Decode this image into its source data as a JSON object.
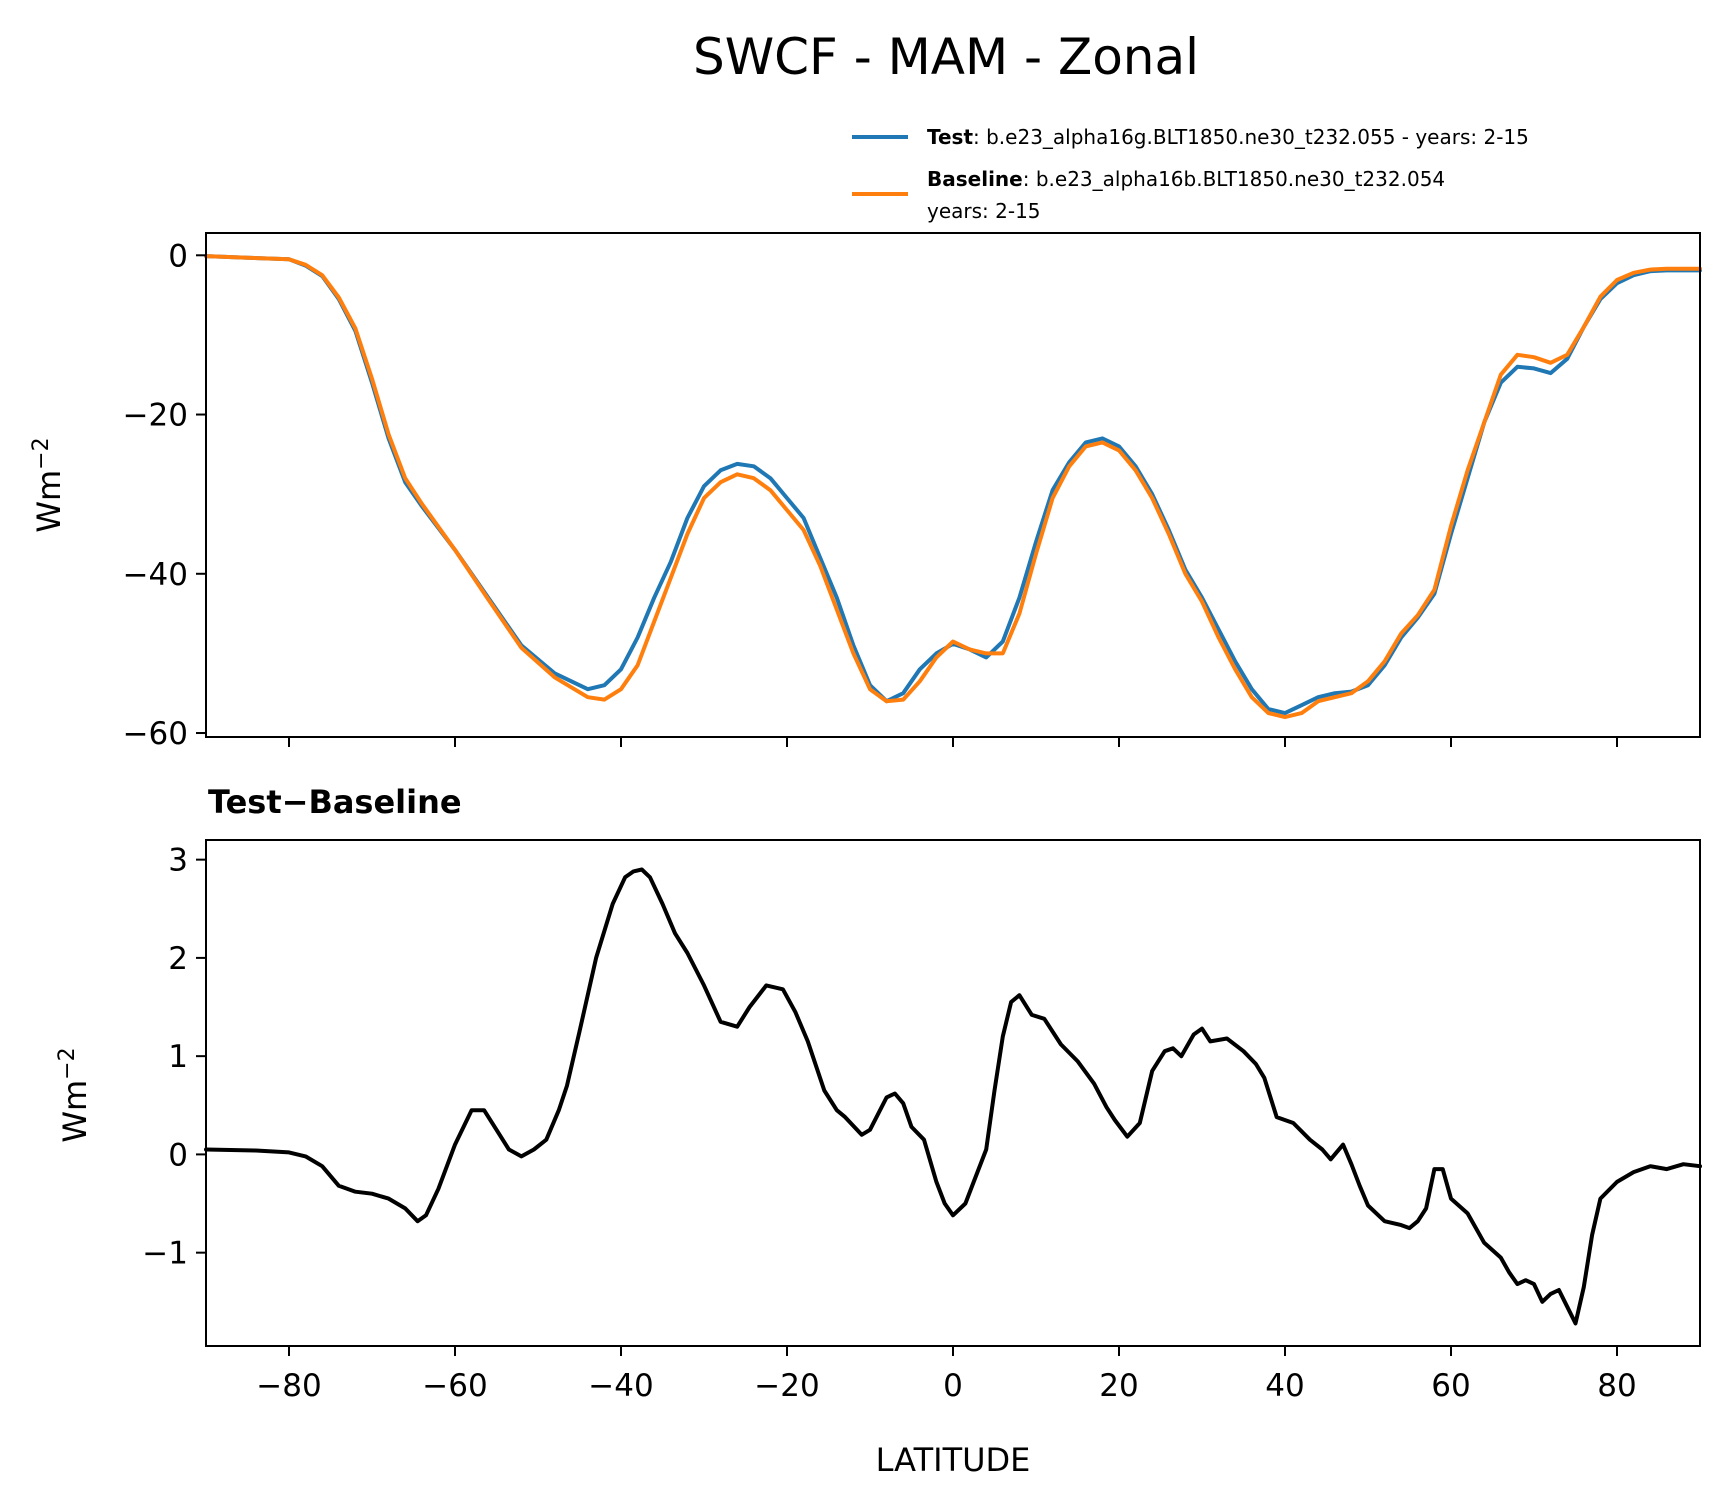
{
  "title": "SWCF - MAM - Zonal",
  "colors": {
    "test": "#1f77b4",
    "baseline": "#ff7f0e",
    "diff": "#000000"
  },
  "legend": {
    "test_name": "Test",
    "test_text": ": b.e23_alpha16g.BLT1850.ne30_t232.055 - years: 2-15",
    "baseline_name": "Baseline",
    "baseline_text": ": b.e23_alpha16b.BLT1850.ne30_t232.054",
    "baseline_text2": "years: 2-15"
  },
  "chart_data": [
    {
      "type": "line",
      "panel": "top",
      "title": "SWCF - MAM - Zonal",
      "xlabel": "",
      "ylabel": "Wm⁻²",
      "xlim": [
        -90,
        90
      ],
      "ylim": [
        -60.5,
        2.8
      ],
      "yticks": [
        0,
        -20,
        -40,
        -60
      ],
      "ytick_labels": [
        "0",
        "−20",
        "−40",
        "−60"
      ],
      "xticks": [
        -80,
        -60,
        -40,
        -20,
        0,
        20,
        40,
        60,
        80
      ],
      "x": [
        -90,
        -85,
        -80,
        -78,
        -76,
        -74,
        -72,
        -70,
        -68,
        -66,
        -64,
        -60,
        -56,
        -52,
        -48,
        -44,
        -42,
        -40,
        -38,
        -36,
        -34,
        -32,
        -30,
        -28,
        -26,
        -24,
        -22,
        -20,
        -18,
        -16,
        -14,
        -12,
        -10,
        -8,
        -6,
        -4,
        -2,
        0,
        2,
        4,
        6,
        8,
        10,
        12,
        14,
        16,
        18,
        20,
        22,
        24,
        26,
        28,
        30,
        32,
        34,
        36,
        38,
        40,
        42,
        44,
        46,
        48,
        50,
        52,
        54,
        56,
        58,
        60,
        62,
        64,
        66,
        68,
        70,
        72,
        74,
        76,
        78,
        80,
        82,
        84,
        86,
        88,
        90
      ],
      "series": [
        {
          "name": "Test",
          "values": [
            -0.1,
            -0.3,
            -0.5,
            -1.3,
            -2.6,
            -5.5,
            -9.5,
            -16,
            -23,
            -28.5,
            -31.5,
            -37,
            -43,
            -49,
            -52.5,
            -54.5,
            -54,
            -52,
            -48,
            -43,
            -38.5,
            -33,
            -29,
            -27,
            -26.2,
            -26.5,
            -28,
            -30.5,
            -33,
            -38,
            -43,
            -49,
            -54,
            -56,
            -55,
            -52,
            -50,
            -48.8,
            -49.5,
            -50.5,
            -48.5,
            -43,
            -36,
            -29.5,
            -26,
            -23.5,
            -23,
            -24,
            -26.5,
            -30,
            -34.5,
            -39.5,
            -43,
            -47,
            -51,
            -54.5,
            -57,
            -57.5,
            -56.5,
            -55.5,
            -55,
            -54.8,
            -54,
            -51.5,
            -48,
            -45.5,
            -42.5,
            -35,
            -28,
            -21,
            -16,
            -14,
            -14.2,
            -14.8,
            -13,
            -9,
            -5.5,
            -3.5,
            -2.5,
            -2,
            -1.9,
            -1.9,
            -1.9
          ]
        },
        {
          "name": "Baseline",
          "values": [
            -0.1,
            -0.3,
            -0.5,
            -1.2,
            -2.5,
            -5.3,
            -9.2,
            -15.5,
            -22.5,
            -28,
            -31.2,
            -37,
            -43.2,
            -49.3,
            -53,
            -55.5,
            -55.8,
            -54.5,
            -51.5,
            -46,
            -40.5,
            -35,
            -30.5,
            -28.5,
            -27.5,
            -28,
            -29.5,
            -32,
            -34.5,
            -39,
            -44.5,
            -50,
            -54.5,
            -56,
            -55.8,
            -53.5,
            -50.5,
            -48.5,
            -49.5,
            -50,
            -50,
            -45,
            -37.5,
            -30.5,
            -26.5,
            -24,
            -23.5,
            -24.5,
            -27,
            -30.5,
            -35,
            -40,
            -43.5,
            -48,
            -52,
            -55.5,
            -57.5,
            -58,
            -57.5,
            -56,
            -55.5,
            -55,
            -53.5,
            -51,
            -47.5,
            -45.2,
            -42,
            -34,
            -27,
            -21,
            -15,
            -12.5,
            -12.8,
            -13.5,
            -12.5,
            -9,
            -5.2,
            -3.1,
            -2.2,
            -1.8,
            -1.7,
            -1.7,
            -1.7
          ]
        }
      ]
    },
    {
      "type": "line",
      "panel": "bottom",
      "title": "Test−Baseline",
      "xlabel": "LATITUDE",
      "ylabel": "Wm⁻²",
      "xlim": [
        -90,
        90
      ],
      "ylim": [
        -1.95,
        3.2
      ],
      "yticks": [
        3,
        2,
        1,
        0,
        -1
      ],
      "ytick_labels": [
        "3",
        "2",
        "1",
        "0",
        "−1"
      ],
      "xticks": [
        -80,
        -60,
        -40,
        -20,
        0,
        20,
        40,
        60,
        80
      ],
      "xtick_labels": [
        "−80",
        "−60",
        "−40",
        "−20",
        "0",
        "20",
        "40",
        "60",
        "80"
      ],
      "x": [
        -90,
        -84,
        -80,
        -78,
        -76,
        -74,
        -72,
        -70,
        -68,
        -66,
        -64.5,
        -63.5,
        -62,
        -60,
        -58,
        -56.5,
        -55,
        -53.5,
        -52,
        -50.5,
        -49,
        -47.5,
        -46.5,
        -45,
        -43,
        -41,
        -39.5,
        -38.5,
        -37.5,
        -36.5,
        -35,
        -33.5,
        -32,
        -30,
        -28,
        -26,
        -24.5,
        -22.5,
        -20.5,
        -19,
        -17.5,
        -15.5,
        -14,
        -13,
        -11,
        -10,
        -8,
        -7,
        -6,
        -5,
        -3.5,
        -2,
        -1,
        0,
        1.5,
        2.5,
        4,
        5,
        6,
        7,
        8,
        9.5,
        11,
        13,
        15,
        17,
        18.5,
        19.5,
        21,
        22.5,
        24,
        25.5,
        26.5,
        27.5,
        29,
        30,
        31,
        33,
        35,
        36.5,
        37.5,
        39,
        41,
        43,
        44.5,
        45.5,
        47,
        48,
        49,
        50,
        52,
        54,
        55,
        56,
        57,
        58,
        59,
        60,
        62,
        64,
        66,
        67,
        68,
        69,
        70,
        71,
        72,
        73,
        74,
        75,
        76,
        77,
        78,
        80,
        82,
        84,
        86,
        88,
        90
      ],
      "series": [
        {
          "name": "Test - Baseline",
          "values": [
            0.05,
            0.04,
            0.02,
            -0.02,
            -0.12,
            -0.32,
            -0.38,
            -0.4,
            -0.45,
            -0.55,
            -0.68,
            -0.62,
            -0.35,
            0.1,
            0.45,
            0.45,
            0.25,
            0.05,
            -0.02,
            0.05,
            0.15,
            0.45,
            0.7,
            1.25,
            2.0,
            2.55,
            2.82,
            2.88,
            2.9,
            2.82,
            2.55,
            2.25,
            2.05,
            1.72,
            1.35,
            1.3,
            1.5,
            1.72,
            1.68,
            1.45,
            1.15,
            0.65,
            0.45,
            0.38,
            0.2,
            0.25,
            0.58,
            0.62,
            0.52,
            0.28,
            0.15,
            -0.28,
            -0.5,
            -0.62,
            -0.5,
            -0.28,
            0.05,
            0.65,
            1.2,
            1.55,
            1.62,
            1.42,
            1.38,
            1.12,
            0.95,
            0.72,
            0.48,
            0.35,
            0.18,
            0.32,
            0.85,
            1.05,
            1.08,
            1.0,
            1.22,
            1.28,
            1.15,
            1.18,
            1.05,
            0.92,
            0.78,
            0.38,
            0.32,
            0.15,
            0.05,
            -0.05,
            0.1,
            -0.1,
            -0.32,
            -0.52,
            -0.68,
            -0.72,
            -0.75,
            -0.68,
            -0.55,
            -0.15,
            -0.15,
            -0.45,
            -0.6,
            -0.9,
            -1.05,
            -1.2,
            -1.32,
            -1.28,
            -1.32,
            -1.5,
            -1.42,
            -1.38,
            -1.55,
            -1.72,
            -1.35,
            -0.82,
            -0.45,
            -0.28,
            -0.18,
            -0.12,
            -0.15,
            -0.1,
            -0.12
          ]
        }
      ]
    }
  ]
}
